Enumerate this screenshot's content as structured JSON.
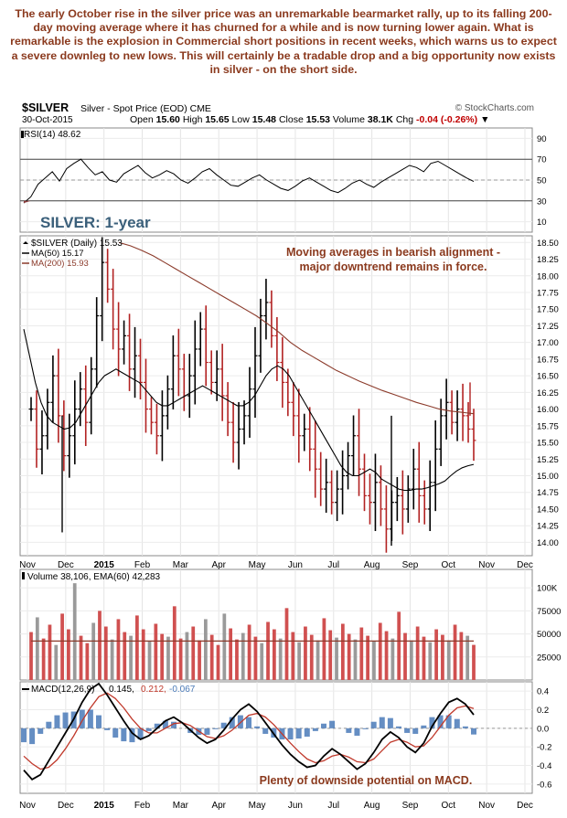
{
  "commentary": "The early October rise in the silver price was an unremarkable bearmarket rally, up to its falling 200-day moving average where it has churned for a while and is now turning lower again. What is remarkable is the explosion in Commercial short positions in recent weeks, which warns us to expect a severe downleg to new lows. This will certainly be a tradable drop and a big opportunity now exists in silver - on the short side.",
  "header": {
    "ticker": "$SILVER",
    "description": "Silver - Spot Price (EOD) CME",
    "copyright": "© StockCharts.com",
    "date": "30-Oct-2015",
    "open_label": "Open",
    "open": "15.60",
    "high_label": "High",
    "high": "15.65",
    "low_label": "Low",
    "low": "15.48",
    "close_label": "Close",
    "close": "15.53",
    "volume_label": "Volume",
    "volume": "38.1K",
    "chg_label": "Chg",
    "chg": "-0.04 (-0.26%)"
  },
  "colors": {
    "up": "#000000",
    "down": "#b22222",
    "ma200": "#8b3a2a",
    "ma50": "#000000",
    "annotation": "#8b3a1e",
    "volume": "#d05050",
    "macd_signal": "#c0392b",
    "histogram": "#4a7ab8"
  },
  "chart_data": [
    {
      "type": "line",
      "panel": "rsi",
      "legend": "RSI(14) 48.62",
      "name": "RSI(14)",
      "ylim": [
        0,
        100
      ],
      "yticks": [
        90,
        70,
        50,
        30,
        10
      ],
      "reference_lines": [
        70,
        50,
        30
      ],
      "values": [
        28,
        34,
        46,
        52,
        58,
        49,
        61,
        66,
        70,
        62,
        55,
        58,
        50,
        48,
        56,
        60,
        64,
        57,
        52,
        55,
        59,
        56,
        50,
        47,
        52,
        58,
        61,
        55,
        50,
        45,
        44,
        48,
        52,
        55,
        50,
        46,
        42,
        40,
        44,
        49,
        52,
        48,
        44,
        40,
        38,
        42,
        47,
        50,
        46,
        43,
        48,
        52,
        56,
        60,
        64,
        62,
        58,
        66,
        68,
        64,
        60,
        56,
        52,
        48.62
      ]
    },
    {
      "type": "ohlc",
      "panel": "price",
      "title": "SILVER: 1-year",
      "legend": [
        "$SILVER (Daily) 15.53",
        "MA(50) 15.17",
        "MA(200) 15.93"
      ],
      "annotation": "Moving averages in bearish alignment - major downtrend remains in force.",
      "ylim": [
        13.8,
        18.6
      ],
      "yticks": [
        18.5,
        18.25,
        18.0,
        17.75,
        17.5,
        17.25,
        17.0,
        16.75,
        16.5,
        16.25,
        16.0,
        15.75,
        15.5,
        15.25,
        15.0,
        14.75,
        14.5,
        14.25,
        14.0
      ],
      "xticks": [
        "Nov",
        "Dec",
        "2015",
        "Feb",
        "Mar",
        "Apr",
        "May",
        "Jun",
        "Jul",
        "Aug",
        "Sep",
        "Oct",
        "Nov",
        "Dec"
      ],
      "close": [
        16.0,
        15.4,
        15.6,
        16.1,
        16.5,
        15.9,
        15.3,
        15.6,
        16.0,
        16.3,
        15.8,
        16.6,
        17.4,
        18.2,
        17.8,
        17.2,
        16.9,
        17.1,
        16.6,
        16.8,
        16.4,
        16.0,
        15.8,
        15.6,
        15.9,
        16.3,
        16.8,
        16.6,
        16.2,
        16.5,
        16.9,
        17.2,
        16.7,
        16.4,
        16.6,
        16.2,
        15.8,
        15.5,
        15.7,
        15.9,
        16.3,
        16.8,
        17.4,
        17.6,
        17.1,
        16.7,
        16.4,
        16.1,
        15.9,
        15.6,
        15.7,
        15.4,
        15.1,
        14.8,
        14.9,
        14.6,
        14.8,
        15.0,
        15.3,
        15.6,
        15.1,
        14.7,
        14.6,
        14.9,
        14.5,
        14.2,
        14.6,
        14.7,
        14.5,
        14.8,
        15.1,
        14.7,
        14.5,
        14.9,
        15.4,
        15.9,
        16.1,
        15.8,
        16.0,
        15.9,
        15.7,
        15.53
      ],
      "ma50": [
        17.2,
        16.8,
        16.4,
        16.1,
        15.9,
        15.8,
        15.75,
        15.7,
        15.72,
        15.8,
        15.95,
        16.1,
        16.25,
        16.4,
        16.5,
        16.55,
        16.6,
        16.55,
        16.5,
        16.45,
        16.4,
        16.3,
        16.2,
        16.1,
        16.05,
        16.05,
        16.1,
        16.15,
        16.2,
        16.25,
        16.3,
        16.35,
        16.3,
        16.25,
        16.2,
        16.15,
        16.1,
        16.05,
        16.05,
        16.1,
        16.2,
        16.35,
        16.5,
        16.6,
        16.65,
        16.6,
        16.5,
        16.35,
        16.2,
        16.05,
        15.9,
        15.75,
        15.6,
        15.45,
        15.3,
        15.15,
        15.05,
        15.0,
        15.0,
        15.05,
        15.1,
        15.05,
        14.95,
        14.9,
        14.85,
        14.8,
        14.78,
        14.78,
        14.8,
        14.8,
        14.82,
        14.85,
        14.88,
        14.92,
        15.0,
        15.07,
        15.12,
        15.15,
        15.17
      ],
      "ma200": [
        18.5,
        18.45,
        18.38,
        18.3,
        18.2,
        18.1,
        18.0,
        17.9,
        17.8,
        17.7,
        17.6,
        17.5,
        17.4,
        17.28,
        17.15,
        17.0,
        16.88,
        16.78,
        16.68,
        16.58,
        16.5,
        16.42,
        16.35,
        16.28,
        16.22,
        16.16,
        16.1,
        16.05,
        16.0,
        15.97,
        15.95,
        15.93
      ],
      "spikes": [
        [
          "Dec",
          14.15
        ],
        [
          "Sep",
          13.95
        ],
        [
          "Nov",
          16.4
        ]
      ]
    },
    {
      "type": "bar",
      "panel": "volume",
      "legend": "Volume 38,106, EMA(60) 42,283",
      "ylim": [
        0,
        120000
      ],
      "yticks": [
        "100K",
        "75000",
        "50000",
        "25000"
      ],
      "ema": 42283,
      "values": [
        52000,
        68000,
        45000,
        60000,
        38000,
        72000,
        55000,
        105000,
        48000,
        40000,
        62000,
        75000,
        58000,
        44000,
        66000,
        52000,
        48000,
        70000,
        55000,
        42000,
        61000,
        50000,
        47000,
        80000,
        45000,
        52000,
        58000,
        43000,
        66000,
        49000,
        38000,
        72000,
        56000,
        44000,
        51000,
        60000,
        47000,
        40000,
        63000,
        55000,
        45000,
        78000,
        52000,
        41000,
        58000,
        49000,
        43000,
        67000,
        54000,
        46000,
        61000,
        50000,
        44000,
        57000,
        48000,
        42000,
        62000,
        53000,
        45000,
        74000,
        51000,
        43000,
        58000,
        47000,
        41000,
        55000,
        49000,
        43000,
        60000,
        52000,
        48000,
        38106
      ]
    },
    {
      "type": "line",
      "panel": "macd",
      "legend": [
        "MACD(12,26,9)",
        "0.145",
        "0.212",
        "-0.067"
      ],
      "annotation": "Plenty of downside potential on MACD.",
      "ylim": [
        -0.7,
        0.5
      ],
      "yticks": [
        0.4,
        0.2,
        0.0,
        -0.2,
        -0.4,
        -0.6
      ],
      "series": [
        {
          "name": "MACD(12,26,9)",
          "values": [
            -0.45,
            -0.55,
            -0.5,
            -0.35,
            -0.2,
            -0.05,
            0.1,
            0.28,
            0.42,
            0.48,
            0.36,
            0.22,
            0.08,
            -0.05,
            -0.12,
            -0.08,
            0.0,
            0.08,
            0.12,
            0.06,
            -0.02,
            -0.1,
            -0.16,
            -0.12,
            -0.02,
            0.1,
            0.2,
            0.26,
            0.18,
            0.06,
            -0.06,
            -0.18,
            -0.28,
            -0.36,
            -0.42,
            -0.4,
            -0.3,
            -0.22,
            -0.28,
            -0.36,
            -0.44,
            -0.38,
            -0.26,
            -0.12,
            -0.04,
            -0.1,
            -0.2,
            -0.26,
            -0.16,
            0.02,
            0.16,
            0.28,
            0.32,
            0.26,
            0.145
          ]
        },
        {
          "name": "Signal",
          "values": [
            -0.3,
            -0.38,
            -0.44,
            -0.42,
            -0.34,
            -0.22,
            -0.08,
            0.08,
            0.22,
            0.34,
            0.38,
            0.32,
            0.22,
            0.1,
            0.0,
            -0.05,
            -0.05,
            0.0,
            0.05,
            0.06,
            0.03,
            -0.03,
            -0.09,
            -0.11,
            -0.08,
            -0.02,
            0.06,
            0.14,
            0.16,
            0.12,
            0.04,
            -0.06,
            -0.16,
            -0.25,
            -0.33,
            -0.37,
            -0.35,
            -0.3,
            -0.28,
            -0.31,
            -0.36,
            -0.37,
            -0.33,
            -0.24,
            -0.15,
            -0.12,
            -0.15,
            -0.2,
            -0.19,
            -0.1,
            0.02,
            0.14,
            0.22,
            0.24,
            0.212
          ]
        }
      ]
    }
  ]
}
